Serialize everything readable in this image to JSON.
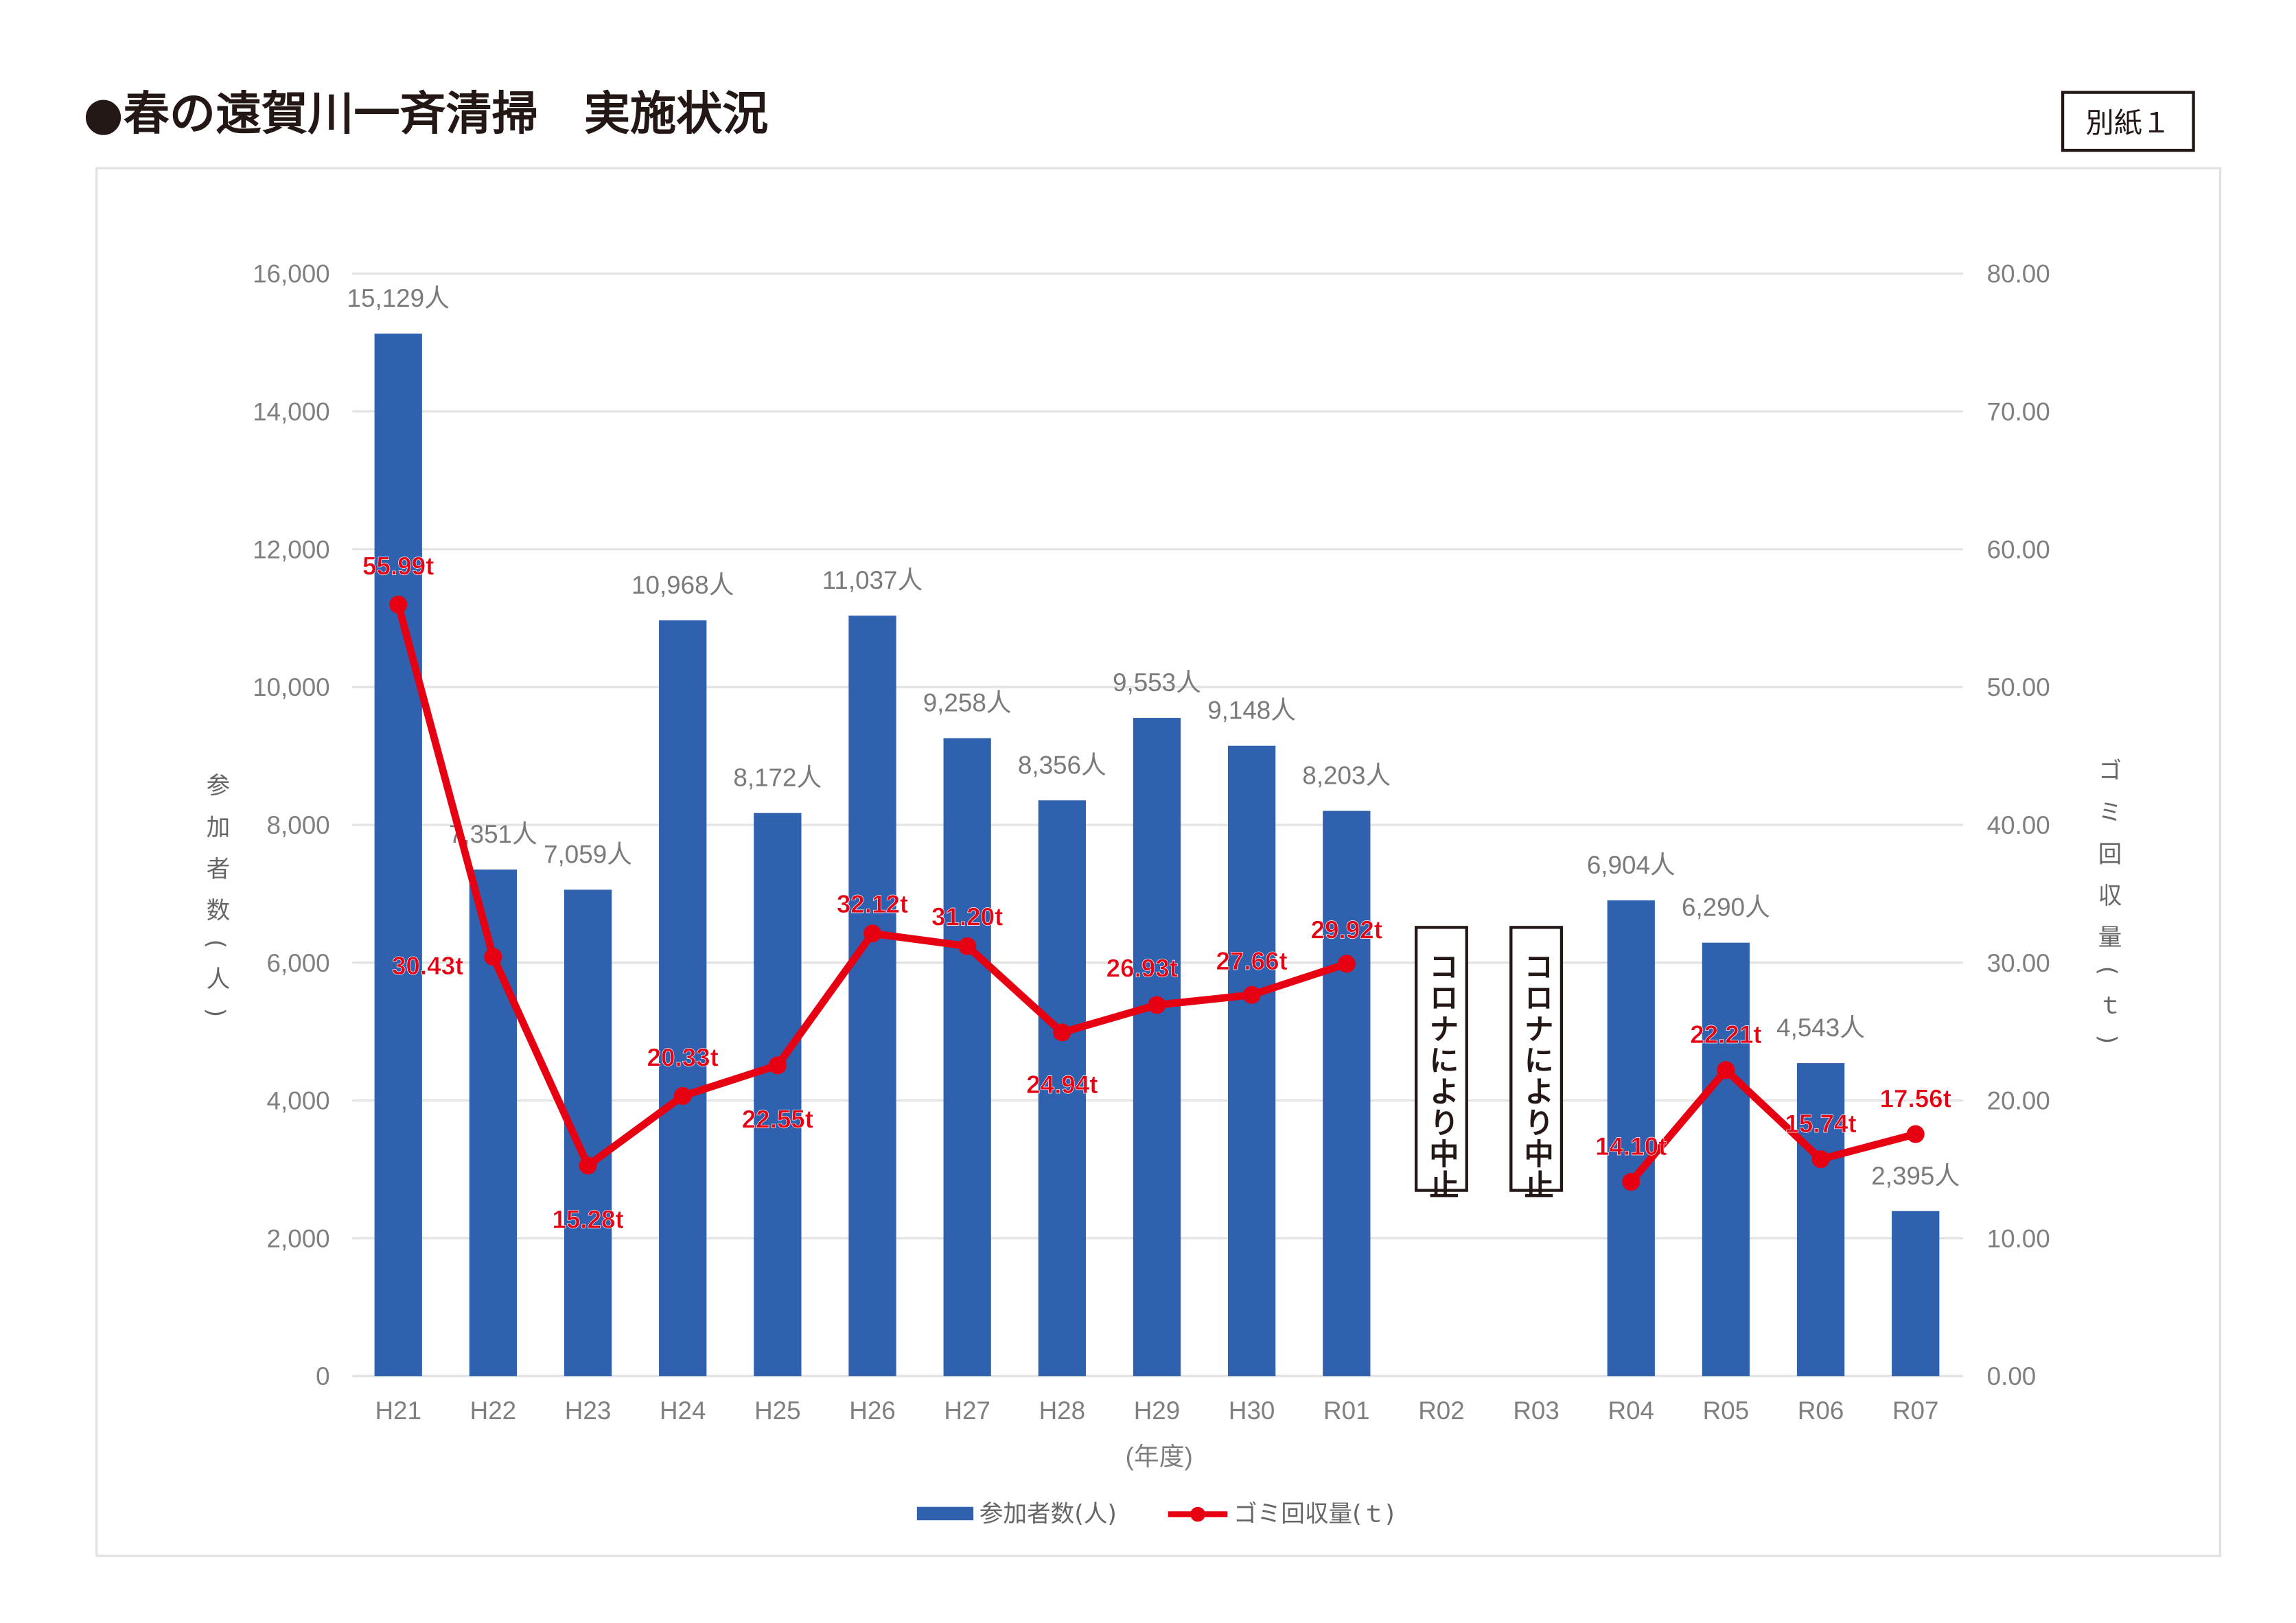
{
  "title": "●春の遠賀川一斉清掃　実施状況",
  "attachment_label": "別紙１",
  "chart_data": {
    "type": "bar+line",
    "categories": [
      "H21",
      "H22",
      "H23",
      "H24",
      "H25",
      "H26",
      "H27",
      "H28",
      "H29",
      "H30",
      "R01",
      "R02",
      "R03",
      "R04",
      "R05",
      "R06",
      "R07"
    ],
    "series": [
      {
        "name": "参加者数(人)",
        "type": "bar",
        "axis": "left",
        "color": "#2f61ae",
        "values": [
          15129,
          7351,
          7059,
          10968,
          8172,
          11037,
          9258,
          8356,
          9553,
          9148,
          8203,
          null,
          null,
          6904,
          6290,
          4543,
          2395
        ],
        "labels": [
          "15,129人",
          "7,351人",
          "7,059人",
          "10,968人",
          "8,172人",
          "11,037人",
          "9,258人",
          "8,356人",
          "9,553人",
          "9,148人",
          "8,203人",
          "",
          "",
          "6,904人",
          "6,290人",
          "4,543人",
          "2,395人"
        ]
      },
      {
        "name": "ゴミ回収量(ｔ)",
        "type": "line",
        "axis": "right",
        "color": "#e60012",
        "values": [
          55.99,
          30.43,
          15.28,
          20.33,
          22.55,
          32.12,
          31.2,
          24.94,
          26.93,
          27.66,
          29.92,
          null,
          null,
          14.1,
          22.21,
          15.74,
          17.56
        ],
        "labels": [
          "55.99t",
          "30.43t",
          "15.28t",
          "20.33t",
          "22.55t",
          "32.12t",
          "31.20t",
          "24.94t",
          "26.93t",
          "27.66t",
          "29.92t",
          "",
          "",
          "14.10t",
          "22.21t",
          "15.74t",
          "17.56t"
        ]
      }
    ],
    "left_axis": {
      "label": "参加者数(人)",
      "range": [
        0,
        16000
      ],
      "ticks": [
        "0",
        "2,000",
        "4,000",
        "6,000",
        "8,000",
        "10,000",
        "12,000",
        "14,000",
        "16,000"
      ]
    },
    "right_axis": {
      "label": "ゴミ回収量(ｔ)",
      "range": [
        0,
        80
      ],
      "ticks": [
        "0.00",
        "10.00",
        "20.00",
        "30.00",
        "40.00",
        "50.00",
        "60.00",
        "70.00",
        "80.00"
      ]
    },
    "xlabel": "(年度)",
    "grid": true,
    "legend": "bottom",
    "annotations": [
      {
        "category": "R02",
        "text": "コロナにより中止"
      },
      {
        "category": "R03",
        "text": "コロナにより中止"
      }
    ]
  }
}
